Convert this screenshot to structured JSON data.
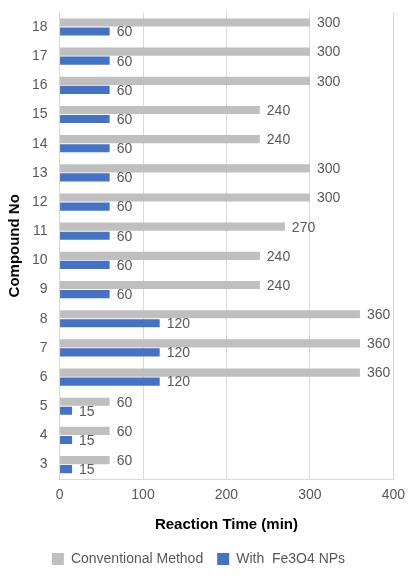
{
  "chart_data": {
    "type": "bar",
    "orientation": "horizontal",
    "x_label": "Reaction Time (min)",
    "y_label": "Compound No",
    "categories": [
      "3",
      "4",
      "5",
      "6",
      "7",
      "8",
      "9",
      "10",
      "11",
      "12",
      "13",
      "14",
      "15",
      "16",
      "17",
      "18"
    ],
    "series": [
      {
        "name": "Conventional Method",
        "color": "#bfbfbf",
        "values": [
          60,
          60,
          60,
          360,
          360,
          360,
          240,
          240,
          270,
          300,
          300,
          240,
          240,
          300,
          300,
          300
        ]
      },
      {
        "name": "With  Fe3O4 NPs",
        "color": "#4472c4",
        "values": [
          15,
          15,
          15,
          120,
          120,
          120,
          60,
          60,
          60,
          60,
          60,
          60,
          60,
          60,
          60,
          60
        ]
      }
    ],
    "xlim": [
      0,
      400
    ],
    "xticks": [
      0,
      100,
      200,
      300,
      400
    ],
    "grid": true,
    "legend": "bottom",
    "data_labels": true
  }
}
